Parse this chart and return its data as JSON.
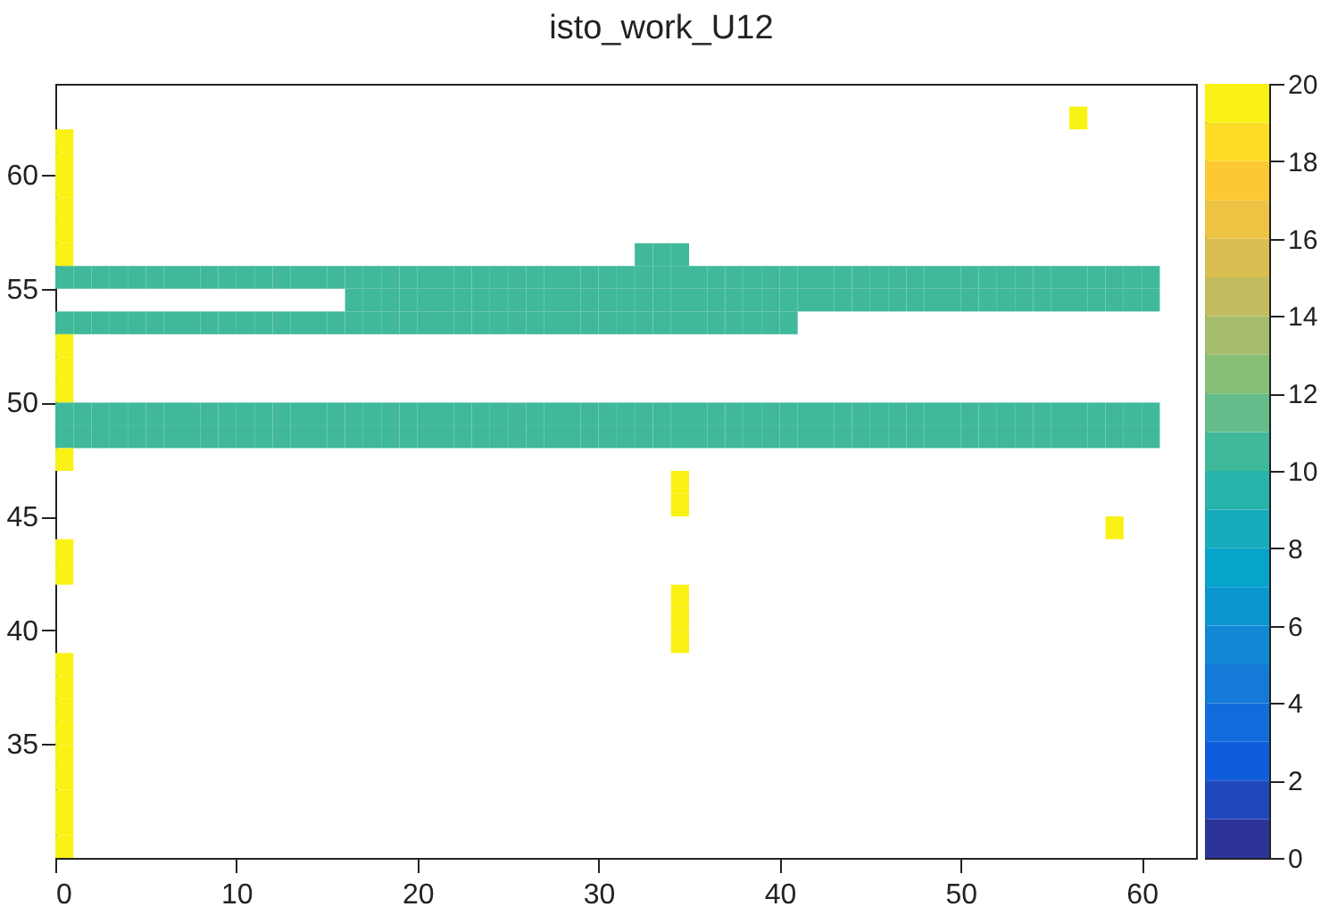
{
  "chart_data": {
    "type": "heatmap",
    "title": "isto_work_U12",
    "x": [
      0.5,
      1.5,
      2.5,
      3.5,
      4.5,
      5.5,
      6.5,
      7.5,
      8.5,
      9.5,
      10.5,
      11.5,
      12.5,
      13.5,
      14.5,
      15.5,
      16.5,
      17.5,
      18.5,
      19.5,
      20.5,
      21.5,
      22.5,
      23.5,
      24.5,
      25.5,
      26.5,
      27.5,
      28.5,
      29.5,
      30.5,
      31.5,
      32.5,
      33.5,
      34.5,
      35.5,
      36.5,
      37.5,
      38.5,
      39.5,
      40.5,
      41.5,
      42.5,
      43.5,
      44.5,
      45.5,
      46.5,
      47.5,
      48.5,
      49.5,
      50.5,
      51.5,
      52.5,
      53.5,
      54.5,
      55.5,
      56.5,
      57.5,
      58.5,
      59.5,
      60.5
    ],
    "y": [
      62.5,
      61.5,
      60.5,
      59.5,
      58.5,
      57.5,
      56.5,
      55.5,
      54.5,
      53.5,
      52.5,
      51.5,
      50.5,
      49.5,
      48.5,
      47.5,
      46.5,
      45.5,
      44.5,
      43.5,
      42.5,
      41.5,
      40.5,
      39.5,
      38.5,
      37.5,
      36.5,
      35.5,
      34.5,
      33.5,
      32.5,
      31.5,
      30.5
    ],
    "xlim": [
      0,
      63
    ],
    "xticks": [
      0,
      10,
      20,
      30,
      40,
      50,
      60
    ],
    "ylim": [
      30,
      64
    ],
    "yticks": [
      35,
      40,
      45,
      50,
      55,
      60
    ],
    "clim": [
      0,
      20
    ],
    "cticks": [
      0,
      2,
      4,
      6,
      8,
      10,
      12,
      14,
      16,
      18,
      20
    ],
    "cells": [
      [
        null,
        null,
        null,
        null,
        null,
        null,
        null,
        null,
        null,
        null,
        null,
        null,
        null,
        null,
        null,
        null,
        null,
        null,
        null,
        null,
        null,
        null,
        null,
        null,
        null,
        null,
        null,
        null,
        null,
        null,
        null,
        null,
        null,
        null,
        null,
        null,
        null,
        null,
        null,
        null,
        null,
        null,
        null,
        null,
        null,
        null,
        null,
        null,
        null,
        null,
        null,
        null,
        null,
        null,
        null,
        null,
        20,
        null,
        null,
        null,
        null
      ],
      [
        20,
        null,
        null,
        null,
        null,
        null,
        null,
        null,
        null,
        null,
        null,
        null,
        null,
        null,
        null,
        null,
        null,
        null,
        null,
        null,
        null,
        null,
        null,
        null,
        null,
        null,
        null,
        null,
        null,
        null,
        null,
        null,
        null,
        null,
        null,
        null,
        null,
        null,
        null,
        null,
        null,
        null,
        null,
        null,
        null,
        null,
        null,
        null,
        null,
        null,
        null,
        null,
        null,
        null,
        null,
        null,
        null,
        null,
        null,
        null,
        null
      ],
      [
        20,
        null,
        null,
        null,
        null,
        null,
        null,
        null,
        null,
        null,
        null,
        null,
        null,
        null,
        null,
        null,
        null,
        null,
        null,
        null,
        null,
        null,
        null,
        null,
        null,
        null,
        null,
        null,
        null,
        null,
        null,
        null,
        null,
        null,
        null,
        null,
        null,
        null,
        null,
        null,
        null,
        null,
        null,
        null,
        null,
        null,
        null,
        null,
        null,
        null,
        null,
        null,
        null,
        null,
        null,
        null,
        null,
        null,
        null,
        null,
        null
      ],
      [
        20,
        null,
        null,
        null,
        null,
        null,
        null,
        null,
        null,
        null,
        null,
        null,
        null,
        null,
        null,
        null,
        null,
        null,
        null,
        null,
        null,
        null,
        null,
        null,
        null,
        null,
        null,
        null,
        null,
        null,
        null,
        null,
        null,
        null,
        null,
        null,
        null,
        null,
        null,
        null,
        null,
        null,
        null,
        null,
        null,
        null,
        null,
        null,
        null,
        null,
        null,
        null,
        null,
        null,
        null,
        null,
        null,
        null,
        null,
        null,
        null
      ],
      [
        20,
        null,
        null,
        null,
        null,
        null,
        null,
        null,
        null,
        null,
        null,
        null,
        null,
        null,
        null,
        null,
        null,
        null,
        null,
        null,
        null,
        null,
        null,
        null,
        null,
        null,
        null,
        null,
        null,
        null,
        null,
        null,
        null,
        null,
        null,
        null,
        null,
        null,
        null,
        null,
        null,
        null,
        null,
        null,
        null,
        null,
        null,
        null,
        null,
        null,
        null,
        null,
        null,
        null,
        null,
        null,
        null,
        null,
        null,
        null,
        null
      ],
      [
        20,
        null,
        null,
        null,
        null,
        null,
        null,
        null,
        null,
        null,
        null,
        null,
        null,
        null,
        null,
        null,
        null,
        null,
        null,
        null,
        null,
        null,
        null,
        null,
        null,
        null,
        null,
        null,
        null,
        null,
        null,
        null,
        null,
        null,
        null,
        null,
        null,
        null,
        null,
        null,
        null,
        null,
        null,
        null,
        null,
        null,
        null,
        null,
        null,
        null,
        null,
        null,
        null,
        null,
        null,
        null,
        null,
        null,
        null,
        null,
        null
      ],
      [
        20,
        null,
        null,
        null,
        null,
        null,
        null,
        null,
        null,
        null,
        null,
        null,
        null,
        null,
        null,
        null,
        null,
        null,
        null,
        null,
        null,
        null,
        null,
        null,
        null,
        null,
        null,
        null,
        null,
        null,
        null,
        null,
        10,
        10,
        10,
        null,
        null,
        null,
        null,
        null,
        null,
        null,
        null,
        null,
        null,
        null,
        null,
        null,
        null,
        null,
        null,
        null,
        null,
        null,
        null,
        null,
        null,
        null,
        null,
        null,
        null
      ],
      [
        10,
        10,
        10,
        10,
        10,
        10,
        10,
        10,
        10,
        10,
        10,
        10,
        10,
        10,
        10,
        10,
        10,
        10,
        10,
        10,
        10,
        10,
        10,
        10,
        10,
        10,
        10,
        10,
        10,
        10,
        10,
        10,
        10,
        10,
        10,
        10,
        10,
        10,
        10,
        10,
        10,
        10,
        10,
        10,
        10,
        10,
        10,
        10,
        10,
        10,
        10,
        10,
        10,
        10,
        10,
        10,
        10,
        10,
        10,
        10,
        10
      ],
      [
        null,
        null,
        null,
        null,
        null,
        null,
        null,
        null,
        null,
        null,
        null,
        null,
        null,
        null,
        null,
        null,
        10,
        10,
        10,
        10,
        10,
        10,
        10,
        10,
        10,
        10,
        10,
        10,
        10,
        10,
        10,
        10,
        10,
        10,
        10,
        10,
        10,
        10,
        10,
        10,
        10,
        10,
        10,
        10,
        10,
        10,
        10,
        10,
        10,
        10,
        10,
        10,
        10,
        10,
        10,
        10,
        10,
        10,
        10,
        10,
        10
      ],
      [
        10,
        10,
        10,
        10,
        10,
        10,
        10,
        10,
        10,
        10,
        10,
        10,
        10,
        10,
        10,
        10,
        10,
        10,
        10,
        10,
        10,
        10,
        10,
        10,
        10,
        10,
        10,
        10,
        10,
        10,
        10,
        10,
        10,
        10,
        10,
        10,
        10,
        10,
        10,
        10,
        10,
        null,
        null,
        null,
        null,
        null,
        null,
        null,
        null,
        null,
        null,
        null,
        null,
        null,
        null,
        null,
        null,
        null,
        null,
        null,
        null
      ],
      [
        20,
        null,
        null,
        null,
        null,
        null,
        null,
        null,
        null,
        null,
        null,
        null,
        null,
        null,
        null,
        null,
        null,
        null,
        null,
        null,
        null,
        null,
        null,
        null,
        null,
        null,
        null,
        null,
        null,
        null,
        null,
        null,
        null,
        null,
        null,
        null,
        null,
        null,
        null,
        null,
        null,
        null,
        null,
        null,
        null,
        null,
        null,
        null,
        null,
        null,
        null,
        null,
        null,
        null,
        null,
        null,
        null,
        null,
        null,
        null,
        null
      ],
      [
        20,
        null,
        null,
        null,
        null,
        null,
        null,
        null,
        null,
        null,
        null,
        null,
        null,
        null,
        null,
        null,
        null,
        null,
        null,
        null,
        null,
        null,
        null,
        null,
        null,
        null,
        null,
        null,
        null,
        null,
        null,
        null,
        null,
        null,
        null,
        null,
        null,
        null,
        null,
        null,
        null,
        null,
        null,
        null,
        null,
        null,
        null,
        null,
        null,
        null,
        null,
        null,
        null,
        null,
        null,
        null,
        null,
        null,
        null,
        null,
        null
      ],
      [
        20,
        null,
        null,
        null,
        null,
        null,
        null,
        null,
        null,
        null,
        null,
        null,
        null,
        null,
        null,
        null,
        null,
        null,
        null,
        null,
        null,
        null,
        null,
        null,
        null,
        null,
        null,
        null,
        null,
        null,
        null,
        null,
        null,
        null,
        null,
        null,
        null,
        null,
        null,
        null,
        null,
        null,
        null,
        null,
        null,
        null,
        null,
        null,
        null,
        null,
        null,
        null,
        null,
        null,
        null,
        null,
        null,
        null,
        null,
        null,
        null
      ],
      [
        10,
        10,
        10,
        10,
        10,
        10,
        10,
        10,
        10,
        10,
        10,
        10,
        10,
        10,
        10,
        10,
        10,
        10,
        10,
        10,
        10,
        10,
        10,
        10,
        10,
        10,
        10,
        10,
        10,
        10,
        10,
        10,
        10,
        10,
        10,
        10,
        10,
        10,
        10,
        10,
        10,
        10,
        10,
        10,
        10,
        10,
        10,
        10,
        10,
        10,
        10,
        10,
        10,
        10,
        10,
        10,
        10,
        10,
        10,
        10,
        10
      ],
      [
        10,
        10,
        10,
        10,
        10,
        10,
        10,
        10,
        10,
        10,
        10,
        10,
        10,
        10,
        10,
        10,
        10,
        10,
        10,
        10,
        10,
        10,
        10,
        10,
        10,
        10,
        10,
        10,
        10,
        10,
        10,
        10,
        10,
        10,
        10,
        10,
        10,
        10,
        10,
        10,
        10,
        10,
        10,
        10,
        10,
        10,
        10,
        10,
        10,
        10,
        10,
        10,
        10,
        10,
        10,
        10,
        10,
        10,
        10,
        10,
        10
      ],
      [
        20,
        null,
        null,
        null,
        null,
        null,
        null,
        null,
        null,
        null,
        null,
        null,
        null,
        null,
        null,
        null,
        null,
        null,
        null,
        null,
        null,
        null,
        null,
        null,
        null,
        null,
        null,
        null,
        null,
        null,
        null,
        null,
        null,
        null,
        null,
        null,
        null,
        null,
        null,
        null,
        null,
        null,
        null,
        null,
        null,
        null,
        null,
        null,
        null,
        null,
        null,
        null,
        null,
        null,
        null,
        null,
        null,
        null,
        null,
        null,
        null
      ],
      [
        null,
        null,
        null,
        null,
        null,
        null,
        null,
        null,
        null,
        null,
        null,
        null,
        null,
        null,
        null,
        null,
        null,
        null,
        null,
        null,
        null,
        null,
        null,
        null,
        null,
        null,
        null,
        null,
        null,
        null,
        null,
        null,
        null,
        null,
        20,
        null,
        null,
        null,
        null,
        null,
        null,
        null,
        null,
        null,
        null,
        null,
        null,
        null,
        null,
        null,
        null,
        null,
        null,
        null,
        null,
        null,
        null,
        null,
        null,
        null,
        null
      ],
      [
        null,
        null,
        null,
        null,
        null,
        null,
        null,
        null,
        null,
        null,
        null,
        null,
        null,
        null,
        null,
        null,
        null,
        null,
        null,
        null,
        null,
        null,
        null,
        null,
        null,
        null,
        null,
        null,
        null,
        null,
        null,
        null,
        null,
        null,
        20,
        null,
        null,
        null,
        null,
        null,
        null,
        null,
        null,
        null,
        null,
        null,
        null,
        null,
        null,
        null,
        null,
        null,
        null,
        null,
        null,
        null,
        null,
        null,
        null,
        null,
        null
      ],
      [
        null,
        null,
        null,
        null,
        null,
        null,
        null,
        null,
        null,
        null,
        null,
        null,
        null,
        null,
        null,
        null,
        null,
        null,
        null,
        null,
        null,
        null,
        null,
        null,
        null,
        null,
        null,
        null,
        null,
        null,
        null,
        null,
        null,
        null,
        null,
        null,
        null,
        null,
        null,
        null,
        null,
        null,
        null,
        null,
        null,
        null,
        null,
        null,
        null,
        null,
        null,
        null,
        null,
        null,
        null,
        null,
        null,
        null,
        20,
        null,
        null
      ],
      [
        20,
        null,
        null,
        null,
        null,
        null,
        null,
        null,
        null,
        null,
        null,
        null,
        null,
        null,
        null,
        null,
        null,
        null,
        null,
        null,
        null,
        null,
        null,
        null,
        null,
        null,
        null,
        null,
        null,
        null,
        null,
        null,
        null,
        null,
        null,
        null,
        null,
        null,
        null,
        null,
        null,
        null,
        null,
        null,
        null,
        null,
        null,
        null,
        null,
        null,
        null,
        null,
        null,
        null,
        null,
        null,
        null,
        null,
        null,
        null,
        null
      ],
      [
        20,
        null,
        null,
        null,
        null,
        null,
        null,
        null,
        null,
        null,
        null,
        null,
        null,
        null,
        null,
        null,
        null,
        null,
        null,
        null,
        null,
        null,
        null,
        null,
        null,
        null,
        null,
        null,
        null,
        null,
        null,
        null,
        null,
        null,
        null,
        null,
        null,
        null,
        null,
        null,
        null,
        null,
        null,
        null,
        null,
        null,
        null,
        null,
        null,
        null,
        null,
        null,
        null,
        null,
        null,
        null,
        null,
        null,
        null,
        null,
        null
      ],
      [
        null,
        null,
        null,
        null,
        null,
        null,
        null,
        null,
        null,
        null,
        null,
        null,
        null,
        null,
        null,
        null,
        null,
        null,
        null,
        null,
        null,
        null,
        null,
        null,
        null,
        null,
        null,
        null,
        null,
        null,
        null,
        null,
        null,
        null,
        20,
        null,
        null,
        null,
        null,
        null,
        null,
        null,
        null,
        null,
        null,
        null,
        null,
        null,
        null,
        null,
        null,
        null,
        null,
        null,
        null,
        null,
        null,
        null,
        null,
        null,
        null
      ],
      [
        null,
        null,
        null,
        null,
        null,
        null,
        null,
        null,
        null,
        null,
        null,
        null,
        null,
        null,
        null,
        null,
        null,
        null,
        null,
        null,
        null,
        null,
        null,
        null,
        null,
        null,
        null,
        null,
        null,
        null,
        null,
        null,
        null,
        null,
        20,
        null,
        null,
        null,
        null,
        null,
        null,
        null,
        null,
        null,
        null,
        null,
        null,
        null,
        null,
        null,
        null,
        null,
        null,
        null,
        null,
        null,
        null,
        null,
        null,
        null,
        null
      ],
      [
        null,
        null,
        null,
        null,
        null,
        null,
        null,
        null,
        null,
        null,
        null,
        null,
        null,
        null,
        null,
        null,
        null,
        null,
        null,
        null,
        null,
        null,
        null,
        null,
        null,
        null,
        null,
        null,
        null,
        null,
        null,
        null,
        null,
        null,
        20,
        null,
        null,
        null,
        null,
        null,
        null,
        null,
        null,
        null,
        null,
        null,
        null,
        null,
        null,
        null,
        null,
        null,
        null,
        null,
        null,
        null,
        null,
        null,
        null,
        null,
        null
      ],
      [
        20,
        null,
        null,
        null,
        null,
        null,
        null,
        null,
        null,
        null,
        null,
        null,
        null,
        null,
        null,
        null,
        null,
        null,
        null,
        null,
        null,
        null,
        null,
        null,
        null,
        null,
        null,
        null,
        null,
        null,
        null,
        null,
        null,
        null,
        null,
        null,
        null,
        null,
        null,
        null,
        null,
        null,
        null,
        null,
        null,
        null,
        null,
        null,
        null,
        null,
        null,
        null,
        null,
        null,
        null,
        null,
        null,
        null,
        null,
        null,
        null
      ],
      [
        20,
        null,
        null,
        null,
        null,
        null,
        null,
        null,
        null,
        null,
        null,
        null,
        null,
        null,
        null,
        null,
        null,
        null,
        null,
        null,
        null,
        null,
        null,
        null,
        null,
        null,
        null,
        null,
        null,
        null,
        null,
        null,
        null,
        null,
        null,
        null,
        null,
        null,
        null,
        null,
        null,
        null,
        null,
        null,
        null,
        null,
        null,
        null,
        null,
        null,
        null,
        null,
        null,
        null,
        null,
        null,
        null,
        null,
        null,
        null,
        null
      ],
      [
        20,
        null,
        null,
        null,
        null,
        null,
        null,
        null,
        null,
        null,
        null,
        null,
        null,
        null,
        null,
        null,
        null,
        null,
        null,
        null,
        null,
        null,
        null,
        null,
        null,
        null,
        null,
        null,
        null,
        null,
        null,
        null,
        null,
        null,
        null,
        null,
        null,
        null,
        null,
        null,
        null,
        null,
        null,
        null,
        null,
        null,
        null,
        null,
        null,
        null,
        null,
        null,
        null,
        null,
        null,
        null,
        null,
        null,
        null,
        null,
        null
      ],
      [
        20,
        null,
        null,
        null,
        null,
        null,
        null,
        null,
        null,
        null,
        null,
        null,
        null,
        null,
        null,
        null,
        null,
        null,
        null,
        null,
        null,
        null,
        null,
        null,
        null,
        null,
        null,
        null,
        null,
        null,
        null,
        null,
        null,
        null,
        null,
        null,
        null,
        null,
        null,
        null,
        null,
        null,
        null,
        null,
        null,
        null,
        null,
        null,
        null,
        null,
        null,
        null,
        null,
        null,
        null,
        null,
        null,
        null,
        null,
        null,
        null
      ],
      [
        20,
        null,
        null,
        null,
        null,
        null,
        null,
        null,
        null,
        null,
        null,
        null,
        null,
        null,
        null,
        null,
        null,
        null,
        null,
        null,
        null,
        null,
        null,
        null,
        null,
        null,
        null,
        null,
        null,
        null,
        null,
        null,
        null,
        null,
        null,
        null,
        null,
        null,
        null,
        null,
        null,
        null,
        null,
        null,
        null,
        null,
        null,
        null,
        null,
        null,
        null,
        null,
        null,
        null,
        null,
        null,
        null,
        null,
        null,
        null,
        null
      ],
      [
        20,
        null,
        null,
        null,
        null,
        null,
        null,
        null,
        null,
        null,
        null,
        null,
        null,
        null,
        null,
        null,
        null,
        null,
        null,
        null,
        null,
        null,
        null,
        null,
        null,
        null,
        null,
        null,
        null,
        null,
        null,
        null,
        null,
        null,
        null,
        null,
        null,
        null,
        null,
        null,
        null,
        null,
        null,
        null,
        null,
        null,
        null,
        null,
        null,
        null,
        null,
        null,
        null,
        null,
        null,
        null,
        null,
        null,
        null,
        null,
        null
      ],
      [
        20,
        null,
        null,
        null,
        null,
        null,
        null,
        null,
        null,
        null,
        null,
        null,
        null,
        null,
        null,
        null,
        null,
        null,
        null,
        null,
        null,
        null,
        null,
        null,
        null,
        null,
        null,
        null,
        null,
        null,
        null,
        null,
        null,
        null,
        null,
        null,
        null,
        null,
        null,
        null,
        null,
        null,
        null,
        null,
        null,
        null,
        null,
        null,
        null,
        null,
        null,
        null,
        null,
        null,
        null,
        null,
        null,
        null,
        null,
        null,
        null
      ],
      [
        20,
        null,
        null,
        null,
        null,
        null,
        null,
        null,
        null,
        null,
        null,
        null,
        null,
        null,
        null,
        null,
        null,
        null,
        null,
        null,
        null,
        null,
        null,
        null,
        null,
        null,
        null,
        null,
        null,
        null,
        null,
        null,
        null,
        null,
        null,
        null,
        null,
        null,
        null,
        null,
        null,
        null,
        null,
        null,
        null,
        null,
        null,
        null,
        null,
        null,
        null,
        null,
        null,
        null,
        null,
        null,
        null,
        null,
        null,
        null,
        null
      ],
      [
        20,
        null,
        null,
        null,
        null,
        null,
        null,
        null,
        null,
        null,
        null,
        null,
        null,
        null,
        null,
        null,
        null,
        null,
        null,
        null,
        null,
        null,
        null,
        null,
        null,
        null,
        null,
        null,
        null,
        null,
        null,
        null,
        null,
        null,
        null,
        null,
        null,
        null,
        null,
        null,
        null,
        null,
        null,
        null,
        null,
        null,
        null,
        null,
        null,
        null,
        null,
        null,
        null,
        null,
        null,
        null,
        null,
        null,
        null,
        null,
        null
      ]
    ]
  }
}
